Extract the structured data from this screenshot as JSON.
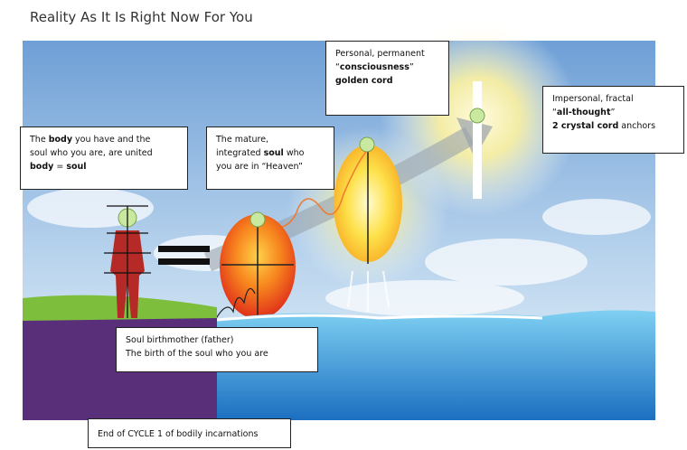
{
  "title": "Reality As It Is Right Now For You",
  "labels": [
    {
      "lines": [
        [
          {
            "text": "The ",
            "bold": false
          },
          {
            "text": "body",
            "bold": true
          },
          {
            "text": " you have and the",
            "bold": false
          }
        ],
        [
          {
            "text": "soul who you are, are united",
            "bold": false
          }
        ],
        [
          {
            "text": "body",
            "bold": true
          },
          {
            "text": " = ",
            "bold": false
          },
          {
            "text": "soul",
            "bold": true
          }
        ]
      ]
    },
    {
      "lines": [
        [
          {
            "text": "The mature,",
            "bold": false
          }
        ],
        [
          {
            "text": "integrated ",
            "bold": false
          },
          {
            "text": "soul",
            "bold": true
          },
          {
            "text": " who",
            "bold": false
          }
        ],
        [
          {
            "text": "you are in “Heaven”",
            "bold": false
          }
        ]
      ]
    },
    {
      "lines": [
        [
          {
            "text": "Personal, permanent",
            "bold": false
          }
        ],
        [
          {
            "text": "“",
            "bold": false
          },
          {
            "text": "consciousness",
            "bold": true
          },
          {
            "text": "”",
            "bold": false
          }
        ],
        [
          {
            "text": "golden cord",
            "bold": true
          }
        ]
      ]
    },
    {
      "lines": [
        [
          {
            "text": "Impersonal, fractal",
            "bold": false
          }
        ],
        [
          {
            "text": "“",
            "bold": false
          },
          {
            "text": "all-thought",
            "bold": true
          },
          {
            "text": "”",
            "bold": false
          }
        ],
        [
          {
            "text": "2 crystal cord",
            "bold": true
          },
          {
            "text": " anchors",
            "bold": false
          }
        ]
      ]
    },
    {
      "lines": [
        [
          {
            "text": "Soul birthmother (father)",
            "bold": false
          }
        ],
        [
          {
            "text": "The birth of the soul who you are",
            "bold": false
          }
        ]
      ]
    },
    {
      "lines": [
        [
          {
            "text": "End of CYCLE 1 of bodily incarnations",
            "bold": false
          }
        ]
      ]
    }
  ]
}
